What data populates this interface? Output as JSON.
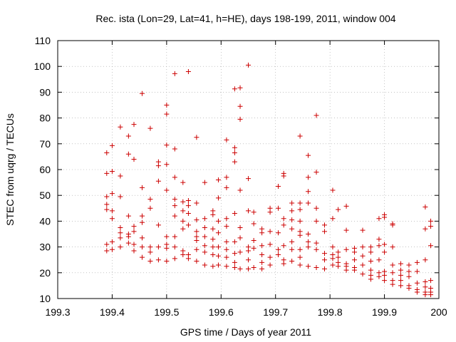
{
  "chart_data": {
    "type": "scatter",
    "title": "Rec. ista (Lon=29, Lat=41, h=HE), days 198-199, 2011, window 004",
    "xlabel": "GPS time / Days of year 2011",
    "ylabel": "STEC from uqrg / TECUs",
    "xlim": [
      199.3,
      200
    ],
    "ylim": [
      10,
      110
    ],
    "xticks": [
      "199.3",
      "199.4",
      "199.5",
      "199.6",
      "199.7",
      "199.8",
      "199.9",
      "200"
    ],
    "yticks": [
      "10",
      "20",
      "30",
      "40",
      "50",
      "60",
      "70",
      "80",
      "90",
      "100",
      "110"
    ],
    "grid": true,
    "marker": "+",
    "color": "#cc0000",
    "points": [
      [
        199.39,
        66.5
      ],
      [
        199.39,
        58.5
      ],
      [
        199.39,
        49.5
      ],
      [
        199.39,
        46.5
      ],
      [
        199.39,
        44.5
      ],
      [
        199.39,
        31
      ],
      [
        199.39,
        28.5
      ],
      [
        199.4,
        69.3
      ],
      [
        199.4,
        59.3
      ],
      [
        199.4,
        50.7
      ],
      [
        199.4,
        44
      ],
      [
        199.4,
        41
      ],
      [
        199.4,
        32
      ],
      [
        199.4,
        29
      ],
      [
        199.415,
        76.5
      ],
      [
        199.415,
        57.5
      ],
      [
        199.415,
        49.5
      ],
      [
        199.415,
        37.5
      ],
      [
        199.415,
        35.5
      ],
      [
        199.415,
        33.5
      ],
      [
        199.415,
        30
      ],
      [
        199.43,
        73
      ],
      [
        199.43,
        66
      ],
      [
        199.43,
        42
      ],
      [
        199.43,
        35
      ],
      [
        199.43,
        34
      ],
      [
        199.43,
        31.5
      ],
      [
        199.44,
        77.5
      ],
      [
        199.44,
        64
      ],
      [
        199.44,
        38
      ],
      [
        199.44,
        36
      ],
      [
        199.44,
        31
      ],
      [
        199.44,
        28.5
      ],
      [
        199.455,
        89.5
      ],
      [
        199.455,
        53
      ],
      [
        199.455,
        42
      ],
      [
        199.455,
        39.5
      ],
      [
        199.455,
        33.5
      ],
      [
        199.455,
        30
      ],
      [
        199.455,
        26
      ],
      [
        199.47,
        76
      ],
      [
        199.47,
        48.5
      ],
      [
        199.47,
        45
      ],
      [
        199.47,
        30
      ],
      [
        199.47,
        28
      ],
      [
        199.47,
        24.5
      ],
      [
        199.485,
        63
      ],
      [
        199.485,
        61.5
      ],
      [
        199.485,
        55.5
      ],
      [
        199.485,
        38.5
      ],
      [
        199.485,
        30
      ],
      [
        199.485,
        25
      ],
      [
        199.5,
        85
      ],
      [
        199.5,
        81.5
      ],
      [
        199.5,
        69.5
      ],
      [
        199.5,
        62
      ],
      [
        199.5,
        52
      ],
      [
        199.5,
        34
      ],
      [
        199.5,
        31
      ],
      [
        199.5,
        29.5
      ],
      [
        199.5,
        24.5
      ],
      [
        199.515,
        97.2
      ],
      [
        199.515,
        68
      ],
      [
        199.515,
        57
      ],
      [
        199.515,
        48.5
      ],
      [
        199.515,
        46
      ],
      [
        199.515,
        42
      ],
      [
        199.515,
        34
      ],
      [
        199.515,
        30
      ],
      [
        199.515,
        25.5
      ],
      [
        199.53,
        55
      ],
      [
        199.53,
        47.5
      ],
      [
        199.53,
        44
      ],
      [
        199.53,
        40
      ],
      [
        199.53,
        37
      ],
      [
        199.53,
        28.5
      ],
      [
        199.53,
        27
      ],
      [
        199.54,
        98
      ],
      [
        199.54,
        48
      ],
      [
        199.54,
        46
      ],
      [
        199.54,
        43
      ],
      [
        199.54,
        38.5
      ],
      [
        199.54,
        27
      ],
      [
        199.54,
        25.5
      ],
      [
        199.555,
        72.5
      ],
      [
        199.555,
        47
      ],
      [
        199.555,
        40.5
      ],
      [
        199.555,
        36
      ],
      [
        199.555,
        34
      ],
      [
        199.555,
        32.5
      ],
      [
        199.555,
        29
      ],
      [
        199.555,
        24.5
      ],
      [
        199.57,
        55
      ],
      [
        199.57,
        41
      ],
      [
        199.57,
        37.5
      ],
      [
        199.57,
        34
      ],
      [
        199.57,
        30.5
      ],
      [
        199.57,
        28
      ],
      [
        199.57,
        23
      ],
      [
        199.585,
        44
      ],
      [
        199.585,
        42.5
      ],
      [
        199.585,
        37
      ],
      [
        199.585,
        33
      ],
      [
        199.585,
        30
      ],
      [
        199.585,
        27
      ],
      [
        199.585,
        22.5
      ],
      [
        199.595,
        56
      ],
      [
        199.595,
        49
      ],
      [
        199.595,
        40
      ],
      [
        199.595,
        35.5
      ],
      [
        199.595,
        30
      ],
      [
        199.595,
        26.5
      ],
      [
        199.595,
        23
      ],
      [
        199.61,
        71.5
      ],
      [
        199.61,
        57
      ],
      [
        199.61,
        53
      ],
      [
        199.61,
        41
      ],
      [
        199.61,
        38
      ],
      [
        199.61,
        32
      ],
      [
        199.61,
        29
      ],
      [
        199.61,
        26
      ],
      [
        199.61,
        22.5
      ],
      [
        199.625,
        91.3
      ],
      [
        199.625,
        68.5
      ],
      [
        199.625,
        66.5
      ],
      [
        199.625,
        63
      ],
      [
        199.625,
        43
      ],
      [
        199.625,
        32
      ],
      [
        199.625,
        27.5
      ],
      [
        199.625,
        24
      ],
      [
        199.625,
        22
      ],
      [
        199.635,
        91.7
      ],
      [
        199.635,
        84.5
      ],
      [
        199.635,
        79.5
      ],
      [
        199.635,
        52
      ],
      [
        199.635,
        37.5
      ],
      [
        199.635,
        33.5
      ],
      [
        199.635,
        28
      ],
      [
        199.635,
        21.5
      ],
      [
        199.65,
        100.5
      ],
      [
        199.65,
        56.5
      ],
      [
        199.65,
        44
      ],
      [
        199.65,
        30
      ],
      [
        199.65,
        28.5
      ],
      [
        199.65,
        25
      ],
      [
        199.65,
        21.5
      ],
      [
        199.66,
        43.5
      ],
      [
        199.66,
        39
      ],
      [
        199.66,
        32.5
      ],
      [
        199.66,
        29.5
      ],
      [
        199.66,
        22
      ],
      [
        199.675,
        37
      ],
      [
        199.675,
        35.5
      ],
      [
        199.675,
        30.5
      ],
      [
        199.675,
        27
      ],
      [
        199.675,
        24
      ],
      [
        199.675,
        21.5
      ],
      [
        199.69,
        45
      ],
      [
        199.69,
        43.5
      ],
      [
        199.69,
        36
      ],
      [
        199.69,
        31
      ],
      [
        199.69,
        26
      ],
      [
        199.69,
        23
      ],
      [
        199.705,
        53.5
      ],
      [
        199.705,
        45
      ],
      [
        199.705,
        35.5
      ],
      [
        199.705,
        29
      ],
      [
        199.705,
        27
      ],
      [
        199.715,
        58.5
      ],
      [
        199.715,
        57.5
      ],
      [
        199.715,
        41
      ],
      [
        199.715,
        38.5
      ],
      [
        199.715,
        30.5
      ],
      [
        199.715,
        25
      ],
      [
        199.715,
        23.5
      ],
      [
        199.73,
        47
      ],
      [
        199.73,
        44
      ],
      [
        199.73,
        40.5
      ],
      [
        199.73,
        37
      ],
      [
        199.73,
        32
      ],
      [
        199.73,
        29
      ],
      [
        199.73,
        24.5
      ],
      [
        199.745,
        73
      ],
      [
        199.745,
        47
      ],
      [
        199.745,
        44.5
      ],
      [
        199.745,
        40
      ],
      [
        199.745,
        36
      ],
      [
        199.745,
        34.5
      ],
      [
        199.745,
        29
      ],
      [
        199.745,
        26
      ],
      [
        199.745,
        23
      ],
      [
        199.76,
        65.5
      ],
      [
        199.76,
        57
      ],
      [
        199.76,
        51.5
      ],
      [
        199.76,
        47
      ],
      [
        199.76,
        35
      ],
      [
        199.76,
        32
      ],
      [
        199.76,
        30
      ],
      [
        199.76,
        22.5
      ],
      [
        199.775,
        81
      ],
      [
        199.775,
        59
      ],
      [
        199.775,
        45
      ],
      [
        199.775,
        40
      ],
      [
        199.775,
        31.5
      ],
      [
        199.775,
        29
      ],
      [
        199.775,
        22
      ],
      [
        199.79,
        38.5
      ],
      [
        199.79,
        36
      ],
      [
        199.79,
        27.5
      ],
      [
        199.79,
        25
      ],
      [
        199.79,
        21.5
      ],
      [
        199.805,
        52
      ],
      [
        199.805,
        41
      ],
      [
        199.805,
        30
      ],
      [
        199.805,
        27
      ],
      [
        199.805,
        25.5
      ],
      [
        199.805,
        23
      ],
      [
        199.815,
        44.5
      ],
      [
        199.815,
        28
      ],
      [
        199.815,
        26
      ],
      [
        199.815,
        24
      ],
      [
        199.815,
        22.5
      ],
      [
        199.83,
        45.8
      ],
      [
        199.83,
        36.5
      ],
      [
        199.83,
        29
      ],
      [
        199.83,
        23.5
      ],
      [
        199.83,
        22.5
      ],
      [
        199.83,
        21
      ],
      [
        199.845,
        29.5
      ],
      [
        199.845,
        28
      ],
      [
        199.845,
        25
      ],
      [
        199.845,
        22
      ],
      [
        199.845,
        21
      ],
      [
        199.86,
        36.5
      ],
      [
        199.86,
        30
      ],
      [
        199.86,
        26.5
      ],
      [
        199.86,
        23
      ],
      [
        199.86,
        19.5
      ],
      [
        199.875,
        30
      ],
      [
        199.875,
        28
      ],
      [
        199.875,
        24.5
      ],
      [
        199.875,
        21
      ],
      [
        199.875,
        19
      ],
      [
        199.875,
        17.5
      ],
      [
        199.89,
        41
      ],
      [
        199.89,
        33
      ],
      [
        199.89,
        30.5
      ],
      [
        199.89,
        25
      ],
      [
        199.89,
        20
      ],
      [
        199.89,
        18.5
      ],
      [
        199.9,
        42.5
      ],
      [
        199.9,
        41.5
      ],
      [
        199.9,
        31
      ],
      [
        199.9,
        28
      ],
      [
        199.9,
        20.5
      ],
      [
        199.9,
        19
      ],
      [
        199.9,
        17
      ],
      [
        199.915,
        39
      ],
      [
        199.915,
        38.5
      ],
      [
        199.915,
        30
      ],
      [
        199.915,
        23
      ],
      [
        199.915,
        20
      ],
      [
        199.915,
        17
      ],
      [
        199.915,
        15.5
      ],
      [
        199.93,
        23.5
      ],
      [
        199.93,
        21
      ],
      [
        199.93,
        19
      ],
      [
        199.93,
        17
      ],
      [
        199.93,
        15
      ],
      [
        199.945,
        23
      ],
      [
        199.945,
        20.5
      ],
      [
        199.945,
        18.5
      ],
      [
        199.945,
        15
      ],
      [
        199.945,
        14
      ],
      [
        199.96,
        24
      ],
      [
        199.96,
        20.5
      ],
      [
        199.96,
        16
      ],
      [
        199.96,
        13.5
      ],
      [
        199.96,
        12.5
      ],
      [
        199.975,
        45.5
      ],
      [
        199.975,
        37
      ],
      [
        199.975,
        25
      ],
      [
        199.975,
        16.5
      ],
      [
        199.975,
        14.5
      ],
      [
        199.975,
        12.5
      ],
      [
        199.975,
        11.5
      ],
      [
        199.985,
        40
      ],
      [
        199.985,
        38
      ],
      [
        199.985,
        30.5
      ],
      [
        199.985,
        17
      ],
      [
        199.985,
        14
      ],
      [
        199.985,
        12.5
      ],
      [
        199.985,
        11.5
      ]
    ]
  }
}
